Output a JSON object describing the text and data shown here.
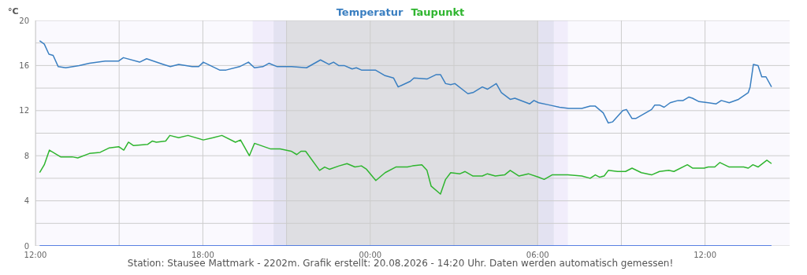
{
  "chart_data": {
    "type": "line",
    "ylabel": "°C",
    "legend": "top",
    "grid": true,
    "xlim": [
      "2026-08-19T12:00",
      "2026-08-20T15:02"
    ],
    "xticks": [
      {
        "value": "2026-08-19T12:00",
        "label": "12:00"
      },
      {
        "value": "2026-08-19T15:00",
        "label": null
      },
      {
        "value": "2026-08-19T18:00",
        "label": "18:00"
      },
      {
        "value": "2026-08-19T21:00",
        "label": null
      },
      {
        "value": "2026-08-20T00:00",
        "label": "00:00"
      },
      {
        "value": "2026-08-20T03:00",
        "label": null
      },
      {
        "value": "2026-08-20T06:00",
        "label": "06:00"
      },
      {
        "value": "2026-08-20T09:00",
        "label": null
      },
      {
        "value": "2026-08-20T12:00",
        "label": "12:00"
      }
    ],
    "ylim": [
      0,
      20
    ],
    "yticks": [
      0,
      {
        "value": 2,
        "label": null
      },
      4,
      {
        "value": 6,
        "label": null
      },
      8,
      {
        "value": 10,
        "label": null
      },
      12,
      {
        "value": 14,
        "label": null
      },
      16,
      {
        "value": 18,
        "label": null
      },
      20
    ],
    "bands": [
      {
        "axis": "x",
        "from": "2026-08-19T19:47",
        "to": "2026-08-19T20:32",
        "color": "#f1edfb"
      },
      {
        "axis": "x",
        "from": "2026-08-19T20:32",
        "to": "2026-08-19T21:00",
        "color": "#e3e2f1"
      },
      {
        "axis": "x",
        "from": "2026-08-19T21:00",
        "to": "2026-08-20T06:02",
        "color": "#dedee2"
      },
      {
        "axis": "x",
        "from": "2026-08-20T06:02",
        "to": "2026-08-20T06:35",
        "color": "#e3e2f1"
      },
      {
        "axis": "x",
        "from": "2026-08-20T06:35",
        "to": "2026-08-20T07:05",
        "color": "#f1edfb"
      }
    ],
    "series": [
      {
        "name": "Temperatur",
        "color": "#3a7fc1",
        "x": [
          "2026-08-19T12:09",
          "2026-08-19T12:19",
          "2026-08-19T12:29",
          "2026-08-19T12:38",
          "2026-08-19T12:49",
          "2026-08-19T13:05",
          "2026-08-19T13:34",
          "2026-08-19T13:56",
          "2026-08-19T14:30",
          "2026-08-19T14:59",
          "2026-08-19T15:09",
          "2026-08-19T15:44",
          "2026-08-19T15:59",
          "2026-08-19T16:35",
          "2026-08-19T16:50",
          "2026-08-19T17:08",
          "2026-08-19T17:37",
          "2026-08-19T17:51",
          "2026-08-19T18:01",
          "2026-08-19T18:36",
          "2026-08-19T18:50",
          "2026-08-19T19:19",
          "2026-08-19T19:38",
          "2026-08-19T19:51",
          "2026-08-19T20:09",
          "2026-08-19T20:22",
          "2026-08-19T20:40",
          "2026-08-19T21:11",
          "2026-08-19T21:43",
          "2026-08-19T22:13",
          "2026-08-19T22:31",
          "2026-08-19T22:41",
          "2026-08-19T22:52",
          "2026-08-19T23:04",
          "2026-08-19T23:21",
          "2026-08-19T23:30",
          "2026-08-19T23:41",
          "2026-08-20T00:11",
          "2026-08-20T00:32",
          "2026-08-20T00:50",
          "2026-08-20T01:00",
          "2026-08-20T01:26",
          "2026-08-20T01:34",
          "2026-08-20T02:02",
          "2026-08-20T02:22",
          "2026-08-20T02:31",
          "2026-08-20T02:42",
          "2026-08-20T02:53",
          "2026-08-20T03:02",
          "2026-08-20T03:30",
          "2026-08-20T03:41",
          "2026-08-20T04:01",
          "2026-08-20T04:12",
          "2026-08-20T04:31",
          "2026-08-20T04:42",
          "2026-08-20T05:01",
          "2026-08-20T05:11",
          "2026-08-20T05:43",
          "2026-08-20T05:52",
          "2026-08-20T06:02",
          "2026-08-20T06:25",
          "2026-08-20T06:47",
          "2026-08-20T07:07",
          "2026-08-20T07:35",
          "2026-08-20T07:53",
          "2026-08-20T08:04",
          "2026-08-20T08:21",
          "2026-08-20T08:32",
          "2026-08-20T08:41",
          "2026-08-20T09:03",
          "2026-08-20T09:11",
          "2026-08-20T09:23",
          "2026-08-20T09:31",
          "2026-08-20T10:05",
          "2026-08-20T10:12",
          "2026-08-20T10:22",
          "2026-08-20T10:32",
          "2026-08-20T10:45",
          "2026-08-20T11:02",
          "2026-08-20T11:13",
          "2026-08-20T11:25",
          "2026-08-20T11:33",
          "2026-08-20T11:47",
          "2026-08-20T12:07",
          "2026-08-20T12:24",
          "2026-08-20T12:35",
          "2026-08-20T12:52",
          "2026-08-20T13:12",
          "2026-08-20T13:33",
          "2026-08-20T13:37",
          "2026-08-20T13:44",
          "2026-08-20T13:54",
          "2026-08-20T14:02",
          "2026-08-20T14:11",
          "2026-08-20T14:23"
        ],
        "values": [
          18.2,
          17.9,
          17.0,
          16.9,
          15.9,
          15.8,
          16.0,
          16.2,
          16.4,
          16.4,
          16.7,
          16.3,
          16.6,
          16.1,
          15.9,
          16.1,
          15.9,
          15.9,
          16.3,
          15.6,
          15.6,
          15.9,
          16.3,
          15.8,
          15.9,
          16.2,
          15.9,
          15.9,
          15.8,
          16.5,
          16.1,
          16.3,
          16.0,
          16.0,
          15.7,
          15.8,
          15.6,
          15.6,
          15.1,
          14.9,
          14.1,
          14.6,
          14.9,
          14.8,
          15.2,
          15.2,
          14.4,
          14.3,
          14.4,
          13.5,
          13.6,
          14.1,
          13.9,
          14.4,
          13.6,
          13.0,
          13.1,
          12.6,
          12.9,
          12.7,
          12.5,
          12.3,
          12.2,
          12.2,
          12.4,
          12.4,
          11.8,
          10.9,
          11.0,
          12.0,
          12.1,
          11.3,
          11.3,
          12.1,
          12.5,
          12.5,
          12.3,
          12.7,
          12.9,
          12.9,
          13.2,
          13.1,
          12.8,
          12.7,
          12.6,
          12.9,
          12.7,
          13.0,
          13.6,
          14.1,
          16.1,
          16.0,
          15.0,
          15.0,
          14.1
        ]
      },
      {
        "name": "Taupunkt",
        "color": "#2fb52f",
        "x": [
          "2026-08-19T12:09",
          "2026-08-19T12:19",
          "2026-08-19T12:30",
          "2026-08-19T12:54",
          "2026-08-19T13:19",
          "2026-08-19T13:31",
          "2026-08-19T13:56",
          "2026-08-19T14:19",
          "2026-08-19T14:39",
          "2026-08-19T14:59",
          "2026-08-19T15:10",
          "2026-08-19T15:20",
          "2026-08-19T15:31",
          "2026-08-19T16:01",
          "2026-08-19T16:11",
          "2026-08-19T16:20",
          "2026-08-19T16:40",
          "2026-08-19T16:49",
          "2026-08-19T17:08",
          "2026-08-19T17:28",
          "2026-08-19T18:01",
          "2026-08-19T18:22",
          "2026-08-19T18:41",
          "2026-08-19T19:10",
          "2026-08-19T19:21",
          "2026-08-19T19:40",
          "2026-08-19T19:51",
          "2026-08-19T20:26",
          "2026-08-19T20:46",
          "2026-08-19T21:10",
          "2026-08-19T21:22",
          "2026-08-19T21:31",
          "2026-08-19T21:41",
          "2026-08-19T22:11",
          "2026-08-19T22:22",
          "2026-08-19T22:32",
          "2026-08-19T22:53",
          "2026-08-19T23:10",
          "2026-08-19T23:27",
          "2026-08-19T23:41",
          "2026-08-19T23:52",
          "2026-08-20T00:12",
          "2026-08-20T00:32",
          "2026-08-20T00:55",
          "2026-08-20T01:20",
          "2026-08-20T01:31",
          "2026-08-20T01:51",
          "2026-08-20T02:02",
          "2026-08-20T02:11",
          "2026-08-20T02:31",
          "2026-08-20T02:42",
          "2026-08-20T02:53",
          "2026-08-20T03:13",
          "2026-08-20T03:24",
          "2026-08-20T03:41",
          "2026-08-20T04:01",
          "2026-08-20T04:12",
          "2026-08-20T04:29",
          "2026-08-20T04:49",
          "2026-08-20T05:01",
          "2026-08-20T05:20",
          "2026-08-20T05:40",
          "2026-08-20T06:02",
          "2026-08-20T06:14",
          "2026-08-20T06:31",
          "2026-08-20T07:05",
          "2026-08-20T07:35",
          "2026-08-20T07:53",
          "2026-08-20T08:04",
          "2026-08-20T08:13",
          "2026-08-20T08:23",
          "2026-08-20T08:32",
          "2026-08-20T08:52",
          "2026-08-20T09:09",
          "2026-08-20T09:23",
          "2026-08-20T09:43",
          "2026-08-20T10:05",
          "2026-08-20T10:22",
          "2026-08-20T10:42",
          "2026-08-20T10:53",
          "2026-08-20T11:22",
          "2026-08-20T11:33",
          "2026-08-20T11:58",
          "2026-08-20T12:07",
          "2026-08-20T12:21",
          "2026-08-20T12:32",
          "2026-08-20T12:52",
          "2026-08-20T13:01",
          "2026-08-20T13:23",
          "2026-08-20T13:33",
          "2026-08-20T13:43",
          "2026-08-20T13:54",
          "2026-08-20T14:13",
          "2026-08-20T14:23"
        ],
        "values": [
          6.5,
          7.2,
          8.5,
          7.9,
          7.9,
          7.8,
          8.2,
          8.3,
          8.7,
          8.8,
          8.5,
          9.2,
          8.9,
          9.0,
          9.3,
          9.2,
          9.3,
          9.8,
          9.6,
          9.8,
          9.4,
          9.6,
          9.8,
          9.2,
          9.4,
          8.0,
          9.1,
          8.6,
          8.6,
          8.4,
          8.1,
          8.4,
          8.4,
          6.7,
          7.0,
          6.8,
          7.1,
          7.3,
          7.0,
          7.1,
          6.8,
          5.8,
          6.5,
          7.0,
          7.0,
          7.1,
          7.2,
          6.7,
          5.3,
          4.6,
          5.9,
          6.5,
          6.4,
          6.6,
          6.2,
          6.2,
          6.4,
          6.2,
          6.3,
          6.7,
          6.2,
          6.4,
          6.1,
          5.9,
          6.3,
          6.3,
          6.2,
          6.0,
          6.3,
          6.1,
          6.2,
          6.7,
          6.6,
          6.6,
          6.9,
          6.5,
          6.3,
          6.6,
          6.7,
          6.6,
          7.2,
          6.9,
          6.9,
          7.0,
          7.0,
          7.4,
          7.0,
          7.0,
          7.0,
          6.9,
          7.2,
          7.0,
          7.6,
          7.3
        ]
      },
      {
        "color": "#2a5fe0",
        "x": [
          "2026-08-19T12:09",
          "2026-08-20T14:23"
        ],
        "values": [
          0,
          0
        ]
      }
    ],
    "annotations": [
      "Station: Stausee Mattmark - 2202m. Grafik erstellt: 20.08.2026 - 14:20 Uhr. Daten werden automatisch gemessen!"
    ]
  }
}
